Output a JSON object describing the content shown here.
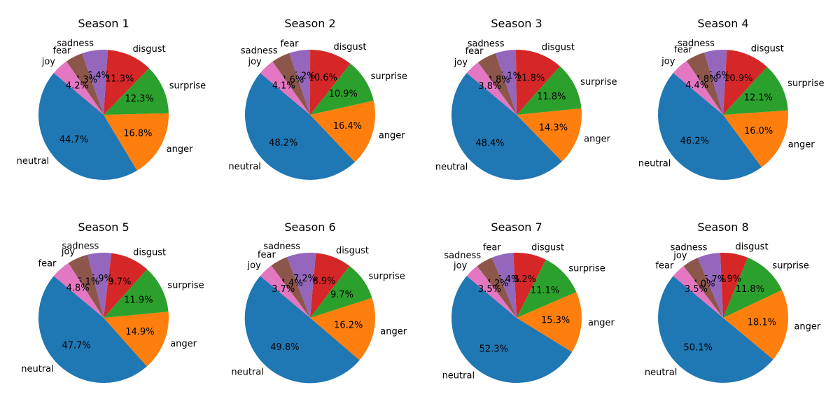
{
  "chart_data": [
    {
      "type": "pie",
      "title": "Season 1",
      "labels": [
        "neutral",
        "anger",
        "surprise",
        "disgust",
        "sadness",
        "fear",
        "joy"
      ],
      "values": [
        44.7,
        16.8,
        12.3,
        11.3,
        6.4,
        4.3,
        4.2
      ],
      "value_labels": [
        "44.7%",
        "16.8%",
        "12.3%",
        "11.3%",
        "6.4%",
        "4.3%",
        "4.2%"
      ],
      "colors": [
        "#1f77b4",
        "#ff7f0e",
        "#2ca02c",
        "#d62728",
        "#9467bd",
        "#8c564b",
        "#e377c2"
      ]
    },
    {
      "type": "pie",
      "title": "Season 2",
      "labels": [
        "neutral",
        "anger",
        "surprise",
        "disgust",
        "fear",
        "sadness",
        "joy"
      ],
      "values": [
        48.2,
        16.4,
        10.9,
        10.6,
        5.2,
        4.6,
        4.1
      ],
      "value_labels": [
        "48.2%",
        "16.4%",
        "10.9%",
        "10.6%",
        "5.2%",
        "4.6%",
        "4.1%"
      ],
      "colors": [
        "#1f77b4",
        "#ff7f0e",
        "#2ca02c",
        "#d62728",
        "#9467bd",
        "#8c564b",
        "#e377c2"
      ]
    },
    {
      "type": "pie",
      "title": "Season 3",
      "labels": [
        "neutral",
        "anger",
        "surprise",
        "disgust",
        "sadness",
        "fear",
        "joy"
      ],
      "values": [
        48.4,
        14.3,
        11.8,
        11.8,
        5.1,
        4.8,
        3.8
      ],
      "value_labels": [
        "48.4%",
        "14.3%",
        "11.8%",
        "11.8%",
        "5.1%",
        "4.8%",
        "3.8%"
      ],
      "colors": [
        "#1f77b4",
        "#ff7f0e",
        "#2ca02c",
        "#d62728",
        "#9467bd",
        "#8c564b",
        "#e377c2"
      ]
    },
    {
      "type": "pie",
      "title": "Season 4",
      "labels": [
        "neutral",
        "anger",
        "surprise",
        "disgust",
        "sadness",
        "fear",
        "joy"
      ],
      "values": [
        46.2,
        16.0,
        12.1,
        10.9,
        5.6,
        4.8,
        4.4
      ],
      "value_labels": [
        "46.2%",
        "16.0%",
        "12.1%",
        "10.9%",
        "5.6%",
        "4.8%",
        "4.4%"
      ],
      "colors": [
        "#1f77b4",
        "#ff7f0e",
        "#2ca02c",
        "#d62728",
        "#9467bd",
        "#8c564b",
        "#e377c2"
      ]
    },
    {
      "type": "pie",
      "title": "Season 5",
      "labels": [
        "neutral",
        "anger",
        "surprise",
        "disgust",
        "sadness",
        "joy",
        "fear"
      ],
      "values": [
        47.7,
        14.9,
        11.9,
        9.7,
        5.9,
        5.1,
        4.8
      ],
      "value_labels": [
        "47.7%",
        "14.9%",
        "11.9%",
        "9.7%",
        "5.9%",
        "5.1%",
        "4.8%"
      ],
      "colors": [
        "#1f77b4",
        "#ff7f0e",
        "#2ca02c",
        "#d62728",
        "#9467bd",
        "#8c564b",
        "#e377c2"
      ]
    },
    {
      "type": "pie",
      "title": "Season 6",
      "labels": [
        "neutral",
        "anger",
        "surprise",
        "disgust",
        "sadness",
        "fear",
        "joy"
      ],
      "values": [
        49.8,
        16.2,
        9.7,
        8.9,
        7.2,
        4.4,
        3.7
      ],
      "value_labels": [
        "49.8%",
        "16.2%",
        "9.7%",
        "8.9%",
        "7.2%",
        "4.4%",
        "3.7%"
      ],
      "colors": [
        "#1f77b4",
        "#ff7f0e",
        "#2ca02c",
        "#d62728",
        "#9467bd",
        "#8c564b",
        "#e377c2"
      ]
    },
    {
      "type": "pie",
      "title": "Season 7",
      "labels": [
        "neutral",
        "anger",
        "surprise",
        "disgust",
        "fear",
        "sadness",
        "joy"
      ],
      "values": [
        52.3,
        15.3,
        11.1,
        8.2,
        5.4,
        4.2,
        3.5
      ],
      "value_labels": [
        "52.3%",
        "15.3%",
        "11.1%",
        "8.2%",
        "5.4%",
        "4.2%",
        "3.5%"
      ],
      "colors": [
        "#1f77b4",
        "#ff7f0e",
        "#2ca02c",
        "#d62728",
        "#9467bd",
        "#8c564b",
        "#e377c2"
      ]
    },
    {
      "type": "pie",
      "title": "Season 8",
      "labels": [
        "neutral",
        "anger",
        "surprise",
        "disgust",
        "sadness",
        "joy",
        "fear"
      ],
      "values": [
        50.1,
        18.1,
        11.8,
        6.9,
        5.7,
        4.0,
        3.5
      ],
      "value_labels": [
        "50.1%",
        "18.1%",
        "11.8%",
        "6.9%",
        "5.7%",
        "4.0%",
        "3.5%"
      ],
      "colors": [
        "#1f77b4",
        "#ff7f0e",
        "#2ca02c",
        "#d62728",
        "#9467bd",
        "#8c564b",
        "#e377c2"
      ]
    }
  ]
}
